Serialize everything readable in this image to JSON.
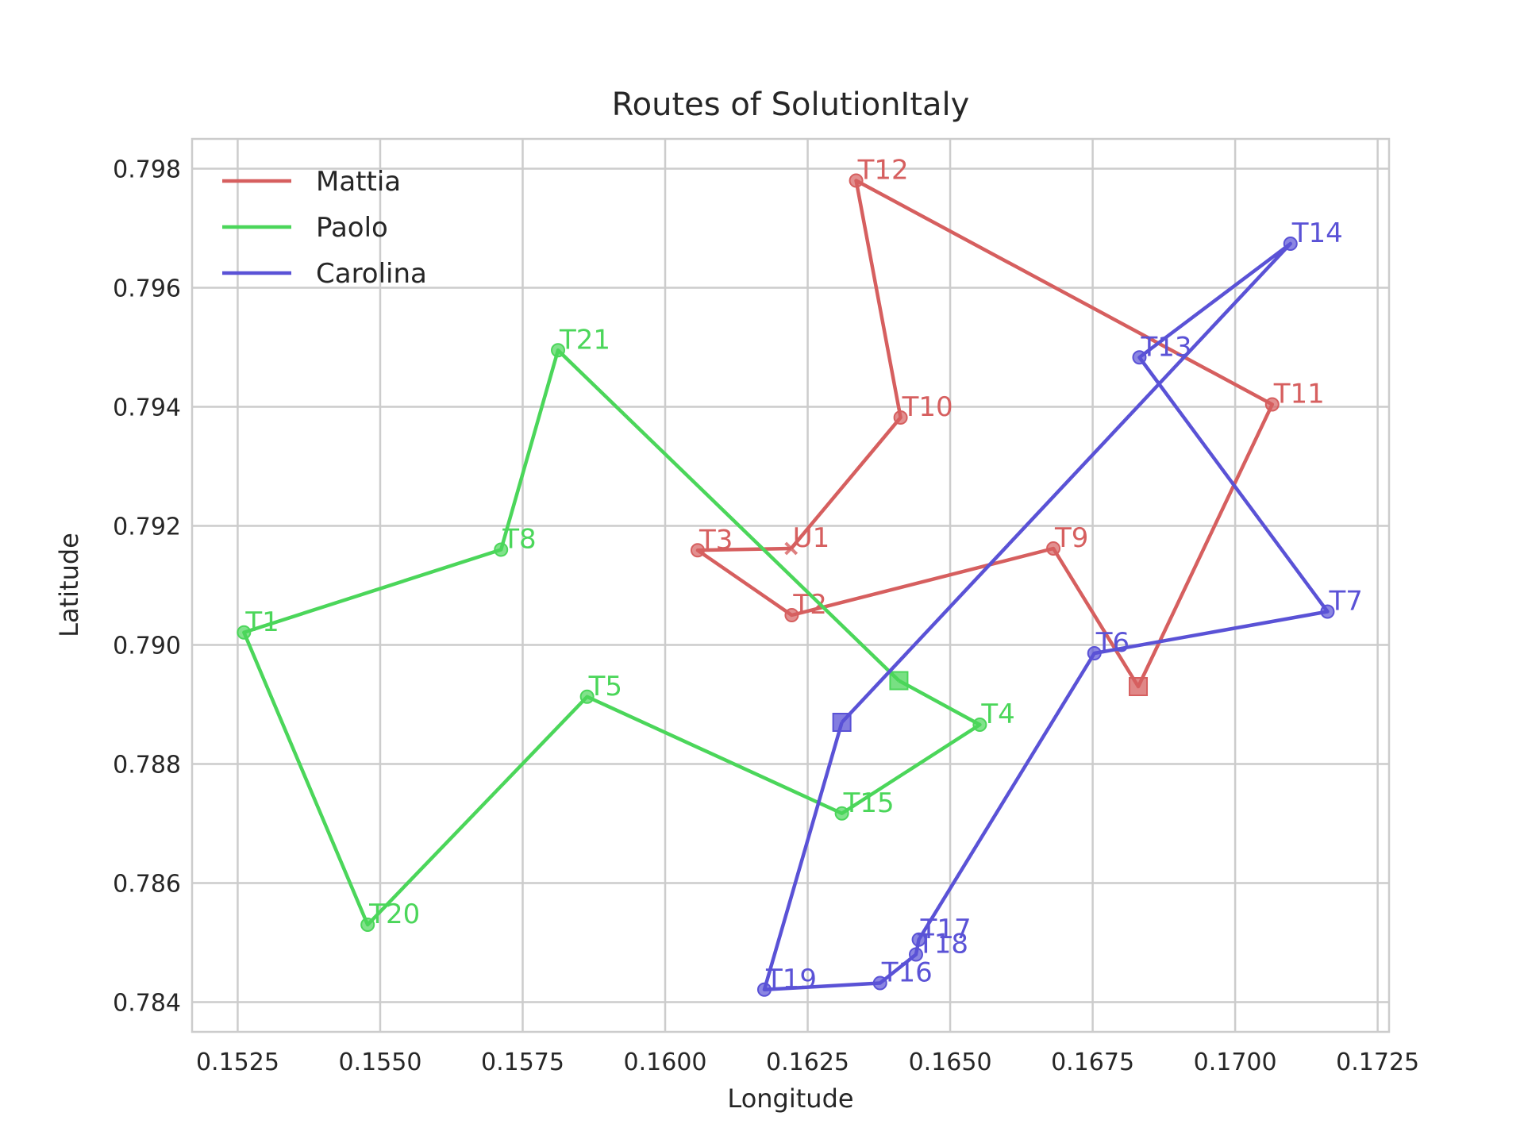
{
  "chart_data": {
    "type": "line",
    "title": "Routes of SolutionItaly",
    "xlabel": "Longitude",
    "ylabel": "Latitude",
    "xlim": [
      0.1517,
      0.1727
    ],
    "ylim": [
      0.7835,
      0.7985
    ],
    "xticks": [
      "0.1525",
      "0.1550",
      "0.1575",
      "0.1600",
      "0.1625",
      "0.1650",
      "0.1675",
      "0.1700",
      "0.1725"
    ],
    "yticks": [
      "0.784",
      "0.786",
      "0.788",
      "0.790",
      "0.792",
      "0.794",
      "0.796",
      "0.798"
    ],
    "grid": true,
    "legend_position": "top-left",
    "series": [
      {
        "name": "Mattia",
        "color": "#d65f5f",
        "depot": {
          "x": 0.1683,
          "y": 0.7893
        },
        "points": [
          {
            "label": "U1",
            "x": 0.16221,
            "y": 0.79162,
            "marker": "x"
          },
          {
            "label": "T3",
            "x": 0.16057,
            "y": 0.79159
          },
          {
            "label": "T2",
            "x": 0.16222,
            "y": 0.7905
          },
          {
            "label": "T9",
            "x": 0.16681,
            "y": 0.79162
          },
          {
            "label": "depot",
            "x": 0.1683,
            "y": 0.7893,
            "marker": "depot"
          },
          {
            "label": "T11",
            "x": 0.17065,
            "y": 0.79404
          },
          {
            "label": "T12",
            "x": 0.16335,
            "y": 0.7978
          },
          {
            "label": "T10",
            "x": 0.16413,
            "y": 0.79382
          },
          {
            "label": "U1",
            "x": 0.16221,
            "y": 0.79162,
            "marker": "x"
          }
        ]
      },
      {
        "name": "Paolo",
        "color": "#4bd65a",
        "depot": {
          "x": 0.1641,
          "y": 0.7894
        },
        "points": [
          {
            "label": "depot",
            "x": 0.1641,
            "y": 0.7894,
            "marker": "depot"
          },
          {
            "label": "T21",
            "x": 0.15812,
            "y": 0.79495
          },
          {
            "label": "T8",
            "x": 0.15712,
            "y": 0.7916
          },
          {
            "label": "T1",
            "x": 0.15261,
            "y": 0.79021
          },
          {
            "label": "T20",
            "x": 0.15478,
            "y": 0.7853
          },
          {
            "label": "T5",
            "x": 0.15863,
            "y": 0.78913
          },
          {
            "label": "T15",
            "x": 0.1631,
            "y": 0.78717
          },
          {
            "label": "T4",
            "x": 0.16552,
            "y": 0.78866
          },
          {
            "label": "depot",
            "x": 0.1641,
            "y": 0.7894,
            "marker": "depot"
          }
        ]
      },
      {
        "name": "Carolina",
        "color": "#5a52d6",
        "depot": {
          "x": 0.1631,
          "y": 0.7887
        },
        "points": [
          {
            "label": "depot",
            "x": 0.1631,
            "y": 0.7887,
            "marker": "depot"
          },
          {
            "label": "T14",
            "x": 0.17097,
            "y": 0.79674
          },
          {
            "label": "T13",
            "x": 0.16832,
            "y": 0.79483
          },
          {
            "label": "T7",
            "x": 0.17162,
            "y": 0.79056
          },
          {
            "label": "T6",
            "x": 0.16753,
            "y": 0.78986
          },
          {
            "label": "T17",
            "x": 0.16445,
            "y": 0.78505
          },
          {
            "label": "T18",
            "x": 0.1644,
            "y": 0.7848
          },
          {
            "label": "T16",
            "x": 0.16377,
            "y": 0.78432
          },
          {
            "label": "T19",
            "x": 0.16174,
            "y": 0.78421
          },
          {
            "label": "depot",
            "x": 0.1631,
            "y": 0.7887,
            "marker": "depot"
          }
        ]
      }
    ]
  }
}
